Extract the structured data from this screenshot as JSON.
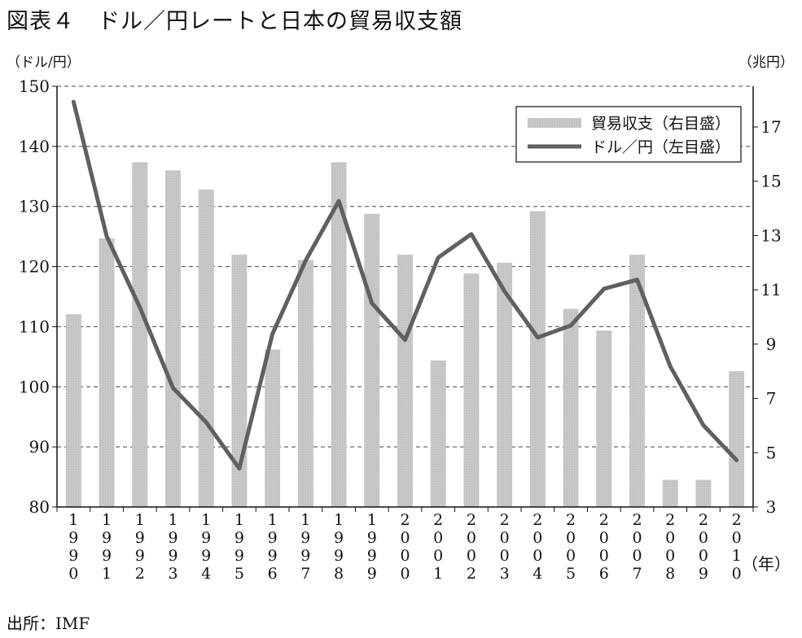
{
  "title": "図表４　ドル／円レートと日本の貿易収支額",
  "left_unit": "（ドル/円）",
  "right_unit": "（兆円）",
  "source": "出所：IMF",
  "year_unit": "年",
  "colors": {
    "bar": "#c8c8c8",
    "line": "#606060",
    "grid": "#444444",
    "axis": "#111111"
  },
  "chart_data": {
    "type": "bar+line",
    "categories": [
      "1990",
      "1991",
      "1992",
      "1993",
      "1994",
      "1995",
      "1996",
      "1997",
      "1998",
      "1999",
      "2000",
      "2001",
      "2002",
      "2003",
      "2004",
      "2005",
      "2006",
      "2007",
      "2008",
      "2009",
      "2010"
    ],
    "left_axis": {
      "ylim": [
        80,
        150
      ],
      "ticks": [
        80,
        90,
        100,
        110,
        120,
        130,
        140,
        150
      ],
      "grid": true
    },
    "right_axis": {
      "ylim": [
        3,
        18.5
      ],
      "ticks": [
        3,
        5,
        7,
        9,
        11,
        13,
        15,
        17
      ]
    },
    "series": [
      {
        "name": "貿易収支（右目盛）",
        "type": "bar",
        "axis": "right",
        "values": [
          10.1,
          12.9,
          15.7,
          15.4,
          14.7,
          12.3,
          8.8,
          12.1,
          15.7,
          13.8,
          12.3,
          8.4,
          11.6,
          12.0,
          13.9,
          10.3,
          9.5,
          12.3,
          4.0,
          4.0,
          8.0
        ]
      },
      {
        "name": "ドル／円（左目盛）",
        "type": "line",
        "axis": "left",
        "values": [
          147.4,
          125.0,
          113.2,
          99.8,
          94.1,
          86.4,
          108.8,
          121.0,
          130.9,
          113.9,
          107.8,
          121.5,
          125.4,
          115.9,
          108.2,
          110.2,
          116.3,
          117.8,
          103.4,
          93.6,
          87.8
        ]
      }
    ],
    "legend": "top-right"
  }
}
